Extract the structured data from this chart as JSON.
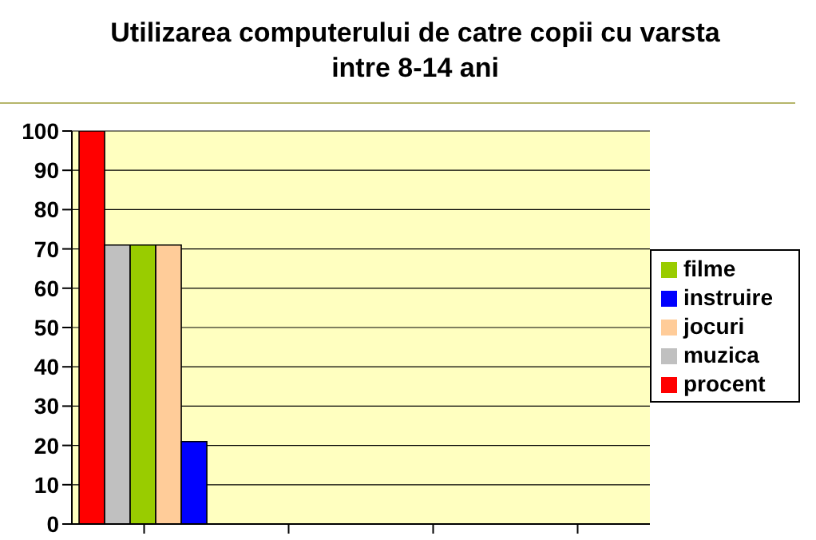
{
  "chart_data": {
    "type": "bar",
    "title": "Utilizarea computerului de catre copii cu varsta intre 8-14 ani",
    "categories": [
      null,
      null,
      null,
      null
    ],
    "series": [
      {
        "name": "procent",
        "color": "#ff0000",
        "values": [
          100,
          null,
          null,
          null
        ]
      },
      {
        "name": "muzica",
        "color": "#c0c0c0",
        "values": [
          71,
          null,
          null,
          null
        ]
      },
      {
        "name": "filme",
        "color": "#99cc00",
        "values": [
          71,
          null,
          null,
          null
        ]
      },
      {
        "name": "jocuri",
        "color": "#ffcc99",
        "values": [
          71,
          null,
          null,
          null
        ]
      },
      {
        "name": "instruire",
        "color": "#0000ff",
        "values": [
          21,
          null,
          null,
          null
        ]
      }
    ],
    "ylim": [
      0,
      100
    ],
    "yticks": [
      0,
      10,
      20,
      30,
      40,
      50,
      60,
      70,
      80,
      90,
      100
    ],
    "grid": "y",
    "legend": "right"
  }
}
